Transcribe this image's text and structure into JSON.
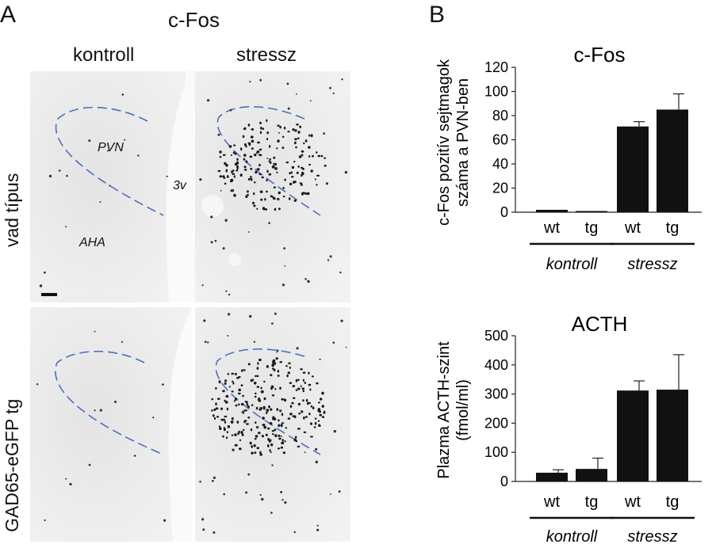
{
  "panel_a": {
    "letter": "A",
    "title": "c-Fos",
    "columns": [
      "kontroll",
      "stressz"
    ],
    "rows": [
      "vad típus",
      "GAD65-eGFP tg"
    ],
    "annotations": {
      "pvn": "PVN",
      "third_ventricle": "3v",
      "aha": "AHA"
    }
  },
  "panel_b": {
    "letter": "B"
  },
  "colors": {
    "bar": "#111111",
    "pvn_outline": "#4a6fc2",
    "tissue": "#eeeeee"
  },
  "chart_data": [
    {
      "type": "bar",
      "title": "c-Fos",
      "ylabel": [
        "c-Fos pozitív sejtmagok",
        "száma a PVN-ben"
      ],
      "categories": [
        "wt",
        "tg",
        "wt",
        "tg"
      ],
      "groups": [
        "kontroll",
        "stressz"
      ],
      "values": [
        2,
        1,
        71,
        85
      ],
      "errors": [
        0,
        0,
        4,
        13
      ],
      "ylim": [
        0,
        120
      ],
      "yticks": [
        0,
        20,
        40,
        60,
        80,
        100,
        120
      ]
    },
    {
      "type": "bar",
      "title": "ACTH",
      "ylabel": [
        "Plazma ACTH-szint",
        "(fmol/ml)"
      ],
      "categories": [
        "wt",
        "tg",
        "wt",
        "tg"
      ],
      "groups": [
        "kontroll",
        "stressz"
      ],
      "values": [
        30,
        43,
        312,
        315
      ],
      "errors": [
        10,
        37,
        33,
        120
      ],
      "ylim": [
        0,
        500
      ],
      "yticks": [
        0,
        100,
        200,
        300,
        400,
        500
      ]
    }
  ]
}
